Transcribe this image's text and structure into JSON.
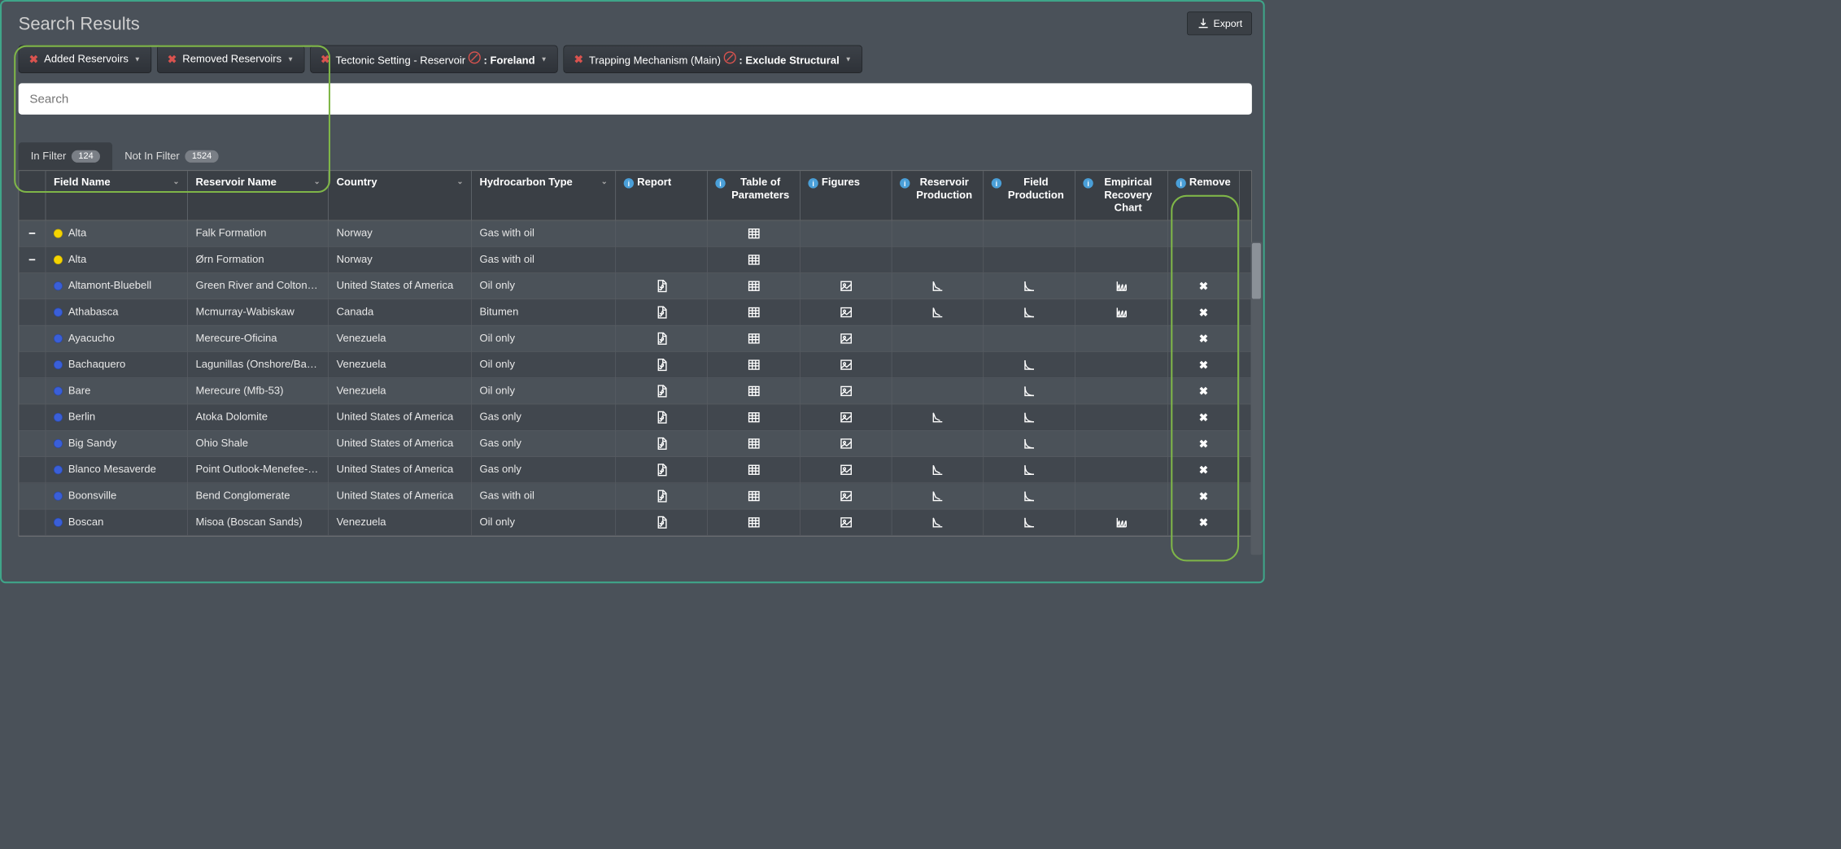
{
  "title": "Search Results",
  "export_label": "Export",
  "filter_chips": [
    {
      "id": "added-reservoirs",
      "label": "Added Reservoirs",
      "bold": "",
      "has_prohibit": false,
      "highlight": true
    },
    {
      "id": "removed-reservoirs",
      "label": "Removed Reservoirs",
      "bold": "",
      "has_prohibit": false,
      "highlight": true
    },
    {
      "id": "tectonic",
      "label": "Tectonic Setting - Reservoir",
      "bold": ": Foreland",
      "has_prohibit": true,
      "highlight": false
    },
    {
      "id": "trapping",
      "label": "Trapping Mechanism (Main)",
      "bold": ": Exclude Structural",
      "has_prohibit": true,
      "highlight": false
    }
  ],
  "search": {
    "placeholder": "Search"
  },
  "tabs": [
    {
      "id": "in-filter",
      "label": "In Filter",
      "count": "124",
      "active": true
    },
    {
      "id": "not-in-filter",
      "label": "Not In Filter",
      "count": "1524",
      "active": false
    }
  ],
  "columns": {
    "field": "Field Name",
    "reservoir": "Reservoir Name",
    "country": "Country",
    "hc": "Hydrocarbon Type",
    "report": "Report",
    "table": "Table of Parameters",
    "figures": "Figures",
    "res_prod": "Reservoir Production",
    "field_prod": "Field Production",
    "empirical": "Empirical Recovery Chart",
    "remove": "Remove"
  },
  "rows": [
    {
      "toggle": "−",
      "dot": "yellow",
      "field": "Alta",
      "reservoir": "Falk Formation",
      "country": "Norway",
      "hc": "Gas with oil",
      "report": false,
      "table": true,
      "figures": false,
      "res_prod": false,
      "field_prod": false,
      "empirical": false,
      "remove": false
    },
    {
      "toggle": "−",
      "dot": "yellow",
      "field": "Alta",
      "reservoir": "Ørn Formation",
      "country": "Norway",
      "hc": "Gas with oil",
      "report": false,
      "table": true,
      "figures": false,
      "res_prod": false,
      "field_prod": false,
      "empirical": false,
      "remove": false
    },
    {
      "toggle": "",
      "dot": "blue",
      "field": "Altamont-Bluebell",
      "reservoir": "Green River and Colton…",
      "country": "United States of America",
      "hc": "Oil only",
      "report": true,
      "table": true,
      "figures": true,
      "res_prod": true,
      "field_prod": true,
      "empirical": true,
      "remove": true
    },
    {
      "toggle": "",
      "dot": "blue",
      "field": "Athabasca",
      "reservoir": "Mcmurray-Wabiskaw",
      "country": "Canada",
      "hc": "Bitumen",
      "report": true,
      "table": true,
      "figures": true,
      "res_prod": true,
      "field_prod": true,
      "empirical": true,
      "remove": true
    },
    {
      "toggle": "",
      "dot": "blue",
      "field": "Ayacucho",
      "reservoir": "Merecure-Oficina",
      "country": "Venezuela",
      "hc": "Oil only",
      "report": true,
      "table": true,
      "figures": true,
      "res_prod": false,
      "field_prod": false,
      "empirical": false,
      "remove": true
    },
    {
      "toggle": "",
      "dot": "blue",
      "field": "Bachaquero",
      "reservoir": "Lagunillas (Onshore/Ba…",
      "country": "Venezuela",
      "hc": "Oil only",
      "report": true,
      "table": true,
      "figures": true,
      "res_prod": false,
      "field_prod": true,
      "empirical": false,
      "remove": true
    },
    {
      "toggle": "",
      "dot": "blue",
      "field": "Bare",
      "reservoir": "Merecure (Mfb-53)",
      "country": "Venezuela",
      "hc": "Oil only",
      "report": true,
      "table": true,
      "figures": true,
      "res_prod": false,
      "field_prod": true,
      "empirical": false,
      "remove": true
    },
    {
      "toggle": "",
      "dot": "blue",
      "field": "Berlin",
      "reservoir": "Atoka Dolomite",
      "country": "United States of America",
      "hc": "Gas only",
      "report": true,
      "table": true,
      "figures": true,
      "res_prod": true,
      "field_prod": true,
      "empirical": false,
      "remove": true
    },
    {
      "toggle": "",
      "dot": "blue",
      "field": "Big Sandy",
      "reservoir": "Ohio Shale",
      "country": "United States of America",
      "hc": "Gas only",
      "report": true,
      "table": true,
      "figures": true,
      "res_prod": false,
      "field_prod": true,
      "empirical": false,
      "remove": true
    },
    {
      "toggle": "",
      "dot": "blue",
      "field": "Blanco Mesaverde",
      "reservoir": "Point Outlook-Menefee-…",
      "country": "United States of America",
      "hc": "Gas only",
      "report": true,
      "table": true,
      "figures": true,
      "res_prod": true,
      "field_prod": true,
      "empirical": false,
      "remove": true
    },
    {
      "toggle": "",
      "dot": "blue",
      "field": "Boonsville",
      "reservoir": "Bend Conglomerate",
      "country": "United States of America",
      "hc": "Gas with oil",
      "report": true,
      "table": true,
      "figures": true,
      "res_prod": true,
      "field_prod": true,
      "empirical": false,
      "remove": true
    },
    {
      "toggle": "",
      "dot": "blue",
      "field": "Boscan",
      "reservoir": "Misoa (Boscan Sands)",
      "country": "Venezuela",
      "hc": "Oil only",
      "report": true,
      "table": true,
      "figures": true,
      "res_prod": true,
      "field_prod": true,
      "empirical": true,
      "remove": true
    }
  ],
  "colors": {
    "panel_border": "#3fa589",
    "highlight": "#7fb648",
    "bg": "#4a5159",
    "red": "#d9534f",
    "info": "#4a9fd8"
  }
}
